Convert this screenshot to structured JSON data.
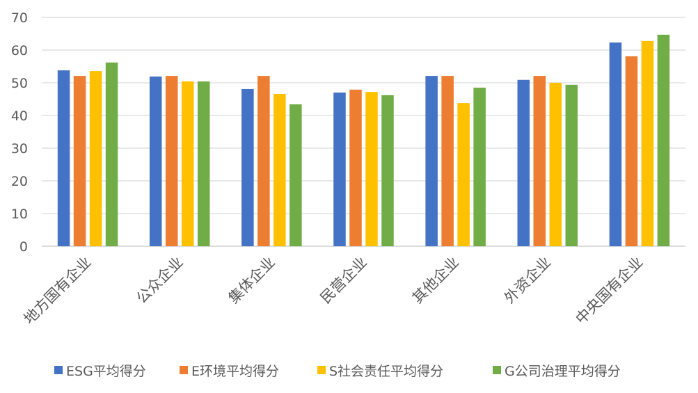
{
  "chart_data": {
    "type": "bar",
    "title": "",
    "xlabel": "",
    "ylabel": "",
    "ylim": [
      0,
      70
    ],
    "yticks": [
      0,
      10,
      20,
      30,
      40,
      50,
      60,
      70
    ],
    "grid": true,
    "legend_position": "bottom",
    "categories": [
      "地方国有企业",
      "公众企业",
      "集体企业",
      "民营企业",
      "其他企业",
      "外资企业",
      "中央国有企业"
    ],
    "series": [
      {
        "name": "ESG平均得分",
        "color": "#4472C4",
        "values": [
          53.8,
          51.9,
          48.1,
          47.0,
          52.1,
          50.9,
          62.3
        ]
      },
      {
        "name": "E环境平均得分",
        "color": "#ED7D31",
        "values": [
          52.1,
          52.1,
          52.1,
          47.9,
          52.1,
          52.1,
          58.1
        ]
      },
      {
        "name": "S社会责任平均得分",
        "color": "#FFC000",
        "values": [
          53.6,
          50.4,
          46.6,
          47.2,
          43.8,
          50.0,
          62.8
        ]
      },
      {
        "name": "G公司治理平均得分",
        "color": "#70AD47",
        "values": [
          56.2,
          50.4,
          43.4,
          46.2,
          48.5,
          49.4,
          64.7
        ]
      }
    ]
  }
}
